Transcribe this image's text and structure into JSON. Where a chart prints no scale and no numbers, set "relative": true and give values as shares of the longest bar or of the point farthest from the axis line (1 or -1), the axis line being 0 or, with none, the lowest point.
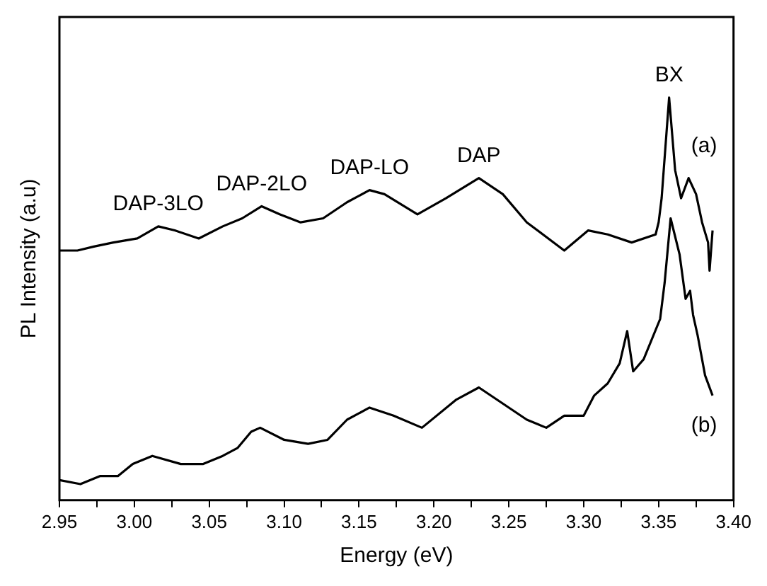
{
  "chart_data": {
    "type": "line",
    "xlabel": "Energy (eV)",
    "ylabel": "PL Intensity (a.u)",
    "relative": true,
    "xlim": [
      2.95,
      3.4
    ],
    "xticks": [
      2.95,
      {
        "value": 2.975,
        "label": null
      },
      {
        "value": 3,
        "label": "3.00"
      },
      {
        "value": 3.025,
        "label": null
      },
      3.05,
      {
        "value": 3.075,
        "label": null
      },
      {
        "value": 3.1,
        "label": "3.10"
      },
      {
        "value": 3.125,
        "label": null
      },
      3.15,
      {
        "value": 3.175,
        "label": null
      },
      {
        "value": 3.2,
        "label": "3.20"
      },
      {
        "value": 3.225,
        "label": null
      },
      3.25,
      {
        "value": 3.275,
        "label": null
      },
      {
        "value": 3.3,
        "label": "3.30"
      },
      {
        "value": 3.325,
        "label": null
      },
      3.35,
      {
        "value": 3.375,
        "label": null
      },
      {
        "value": 3.4,
        "label": "3.40"
      }
    ],
    "series": [
      {
        "name": "(a)",
        "color": "#000000",
        "x": [
          2.95,
          2.962,
          2.973,
          2.986,
          3.002,
          3.016,
          3.027,
          3.043,
          3.059,
          3.072,
          3.085,
          3.097,
          3.111,
          3.126,
          3.142,
          3.157,
          3.167,
          3.189,
          3.208,
          3.23,
          3.246,
          3.262,
          3.287,
          3.303,
          3.316,
          3.332,
          3.348,
          3.35,
          3.352,
          3.357,
          3.361,
          3.365,
          3.37,
          3.375,
          3.379,
          3.383,
          3.384,
          3.386
        ],
        "values": [
          0.62,
          0.62,
          0.63,
          0.64,
          0.65,
          0.68,
          0.67,
          0.65,
          0.68,
          0.7,
          0.73,
          0.71,
          0.69,
          0.7,
          0.74,
          0.77,
          0.76,
          0.71,
          0.75,
          0.8,
          0.76,
          0.69,
          0.62,
          0.67,
          0.66,
          0.64,
          0.66,
          0.69,
          0.75,
          1.0,
          0.82,
          0.75,
          0.8,
          0.76,
          0.69,
          0.64,
          0.57,
          0.67
        ]
      },
      {
        "name": "(b)",
        "color": "#000000",
        "x": [
          2.95,
          2.964,
          2.977,
          2.989,
          2.999,
          3.012,
          3.031,
          3.046,
          3.059,
          3.069,
          3.078,
          3.084,
          3.1,
          3.116,
          3.129,
          3.142,
          3.157,
          3.173,
          3.192,
          3.215,
          3.23,
          3.246,
          3.262,
          3.275,
          3.287,
          3.3,
          3.307,
          3.316,
          3.324,
          3.329,
          3.333,
          3.34,
          3.351,
          3.354,
          3.358,
          3.364,
          3.368,
          3.371,
          3.373,
          3.376,
          3.381,
          3.386
        ],
        "values": [
          0.05,
          0.04,
          0.06,
          0.06,
          0.09,
          0.11,
          0.09,
          0.09,
          0.11,
          0.13,
          0.17,
          0.18,
          0.15,
          0.14,
          0.15,
          0.2,
          0.23,
          0.21,
          0.18,
          0.25,
          0.28,
          0.24,
          0.2,
          0.18,
          0.21,
          0.21,
          0.26,
          0.29,
          0.34,
          0.42,
          0.32,
          0.35,
          0.45,
          0.54,
          0.7,
          0.61,
          0.5,
          0.52,
          0.46,
          0.41,
          0.31,
          0.26
        ]
      }
    ],
    "annotations": [
      {
        "text": "DAP-3LO",
        "x": 3.016,
        "y": 0.68
      },
      {
        "text": "DAP-2LO",
        "x": 3.085,
        "y": 0.73
      },
      {
        "text": "DAP-LO",
        "x": 3.157,
        "y": 0.77
      },
      {
        "text": "DAP",
        "x": 3.23,
        "y": 0.8
      },
      {
        "text": "BX",
        "x": 3.357,
        "y": 1.0
      }
    ],
    "legend": false,
    "marker": "none",
    "line_style": "solid"
  }
}
